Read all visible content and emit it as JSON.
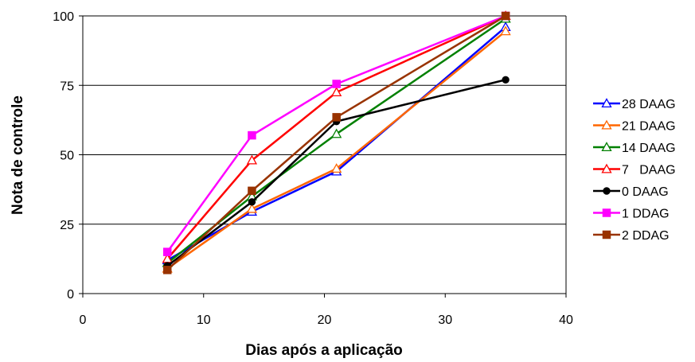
{
  "chart_data": {
    "type": "line",
    "title": "",
    "xlabel": "Dias após a aplicação",
    "ylabel": "Nota de controle",
    "xlim": [
      0,
      40
    ],
    "ylim": [
      0,
      100
    ],
    "xticks": [
      "0",
      "10",
      "20",
      "30",
      "40"
    ],
    "yticks": [
      "0",
      "25",
      "50",
      "75",
      "100"
    ],
    "grid": "horizontal",
    "legend_position": "right",
    "x": [
      7,
      14,
      21,
      35
    ],
    "series": [
      {
        "name": "28 DAAG",
        "color": "#0000ff",
        "marker": "triangle-open",
        "values": [
          12,
          29.5,
          44,
          96
        ]
      },
      {
        "name": "21 DAAG",
        "color": "#ff6600",
        "marker": "triangle-open",
        "values": [
          9,
          30.5,
          45,
          94.5
        ]
      },
      {
        "name": "14 DAAG",
        "color": "#008000",
        "marker": "triangle-open",
        "values": [
          11,
          35,
          57.5,
          99
        ]
      },
      {
        "name": "7   DAAG",
        "color": "#ff0000",
        "marker": "triangle-open",
        "values": [
          12.5,
          48,
          72.5,
          100
        ]
      },
      {
        "name": "0 DAAG",
        "color": "#000000",
        "marker": "circle",
        "values": [
          10,
          33,
          62,
          77
        ]
      },
      {
        "name": "1 DDAG",
        "color": "#ff00ff",
        "marker": "square",
        "values": [
          15,
          57,
          75.5,
          100
        ]
      },
      {
        "name": "2 DDAG",
        "color": "#993300",
        "marker": "square",
        "values": [
          8.5,
          37,
          63.5,
          100
        ]
      }
    ]
  }
}
